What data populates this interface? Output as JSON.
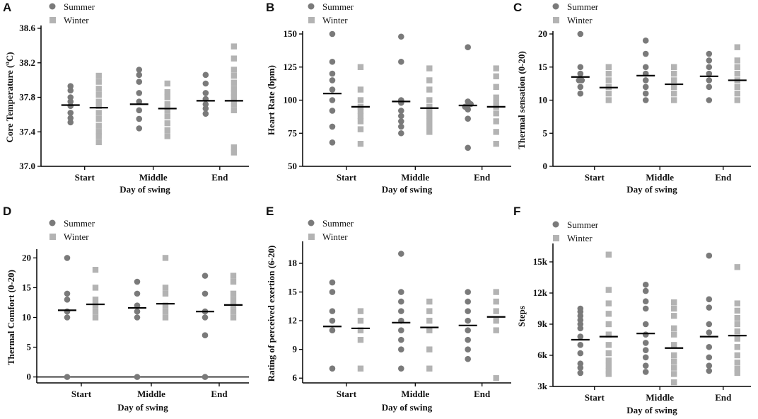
{
  "colors": {
    "summer": "#7a7a7a",
    "winter": "#b3b3b3",
    "axis": "#000000",
    "mean": "#000000"
  },
  "chart_data": [
    {
      "type": "scatter",
      "panel": "A",
      "ylabel": "Core Temperature (°C)",
      "ylabel_prefix": "Core Temperature (",
      "ylabel_sup": "o",
      "ylabel_suffix": "C)",
      "xlabel": "Day of swing",
      "categories": [
        "Start",
        "Middle",
        "End"
      ],
      "legend": [
        "Summer",
        "Winter"
      ],
      "ylim": [
        37.0,
        38.6
      ],
      "yticks": [
        37.0,
        37.4,
        37.8,
        38.2,
        38.6
      ],
      "ytick_labels": [
        "37.0",
        "37.4",
        "37.8",
        "38.2",
        "38.6"
      ],
      "series": [
        {
          "name": "Summer",
          "marker": "circle",
          "means": [
            37.71,
            37.72,
            37.76
          ],
          "points": [
            [
              37.93,
              37.88,
              37.8,
              37.75,
              37.7,
              37.62,
              37.56,
              37.51
            ],
            [
              38.12,
              38.06,
              37.98,
              37.85,
              37.75,
              37.65,
              37.55,
              37.44
            ],
            [
              38.06,
              37.96,
              37.85,
              37.78,
              37.72,
              37.67,
              37.61
            ]
          ]
        },
        {
          "name": "Winter",
          "marker": "square",
          "means": [
            37.68,
            37.67,
            37.76
          ],
          "points": [
            [
              38.05,
              37.98,
              37.9,
              37.83,
              37.75,
              37.7,
              37.62,
              37.55,
              37.47,
              37.4,
              37.35,
              37.28
            ],
            [
              37.96,
              37.86,
              37.8,
              37.72,
              37.65,
              37.58,
              37.5,
              37.42,
              37.35
            ],
            [
              38.39,
              38.25,
              38.12,
              38.05,
              37.97,
              37.9,
              37.85,
              37.8,
              37.72,
              37.65,
              37.22,
              37.16
            ]
          ]
        }
      ]
    },
    {
      "type": "scatter",
      "panel": "B",
      "ylabel": "Heart Rate (bpm)",
      "xlabel": "Day of swing",
      "categories": [
        "Start",
        "Middle",
        "End"
      ],
      "legend": [
        "Summer",
        "Winter"
      ],
      "ylim": [
        50,
        150
      ],
      "yticks": [
        50,
        75,
        100,
        125,
        150
      ],
      "ytick_labels": [
        "50",
        "75",
        "100",
        "125",
        "150"
      ],
      "series": [
        {
          "name": "Summer",
          "marker": "circle",
          "means": [
            105,
            99,
            96
          ],
          "points": [
            [
              150,
              129,
              120,
              115,
              108,
              100,
              92,
              80,
              68
            ],
            [
              148,
              129,
              100,
              98,
              92,
              88,
              84,
              80,
              75
            ],
            [
              140,
              99,
              97,
              96,
              95,
              93,
              86,
              64
            ]
          ]
        },
        {
          "name": "Winter",
          "marker": "square",
          "means": [
            95,
            94,
            95
          ],
          "points": [
            [
              125,
              108,
              100,
              95,
              92,
              88,
              84,
              78,
              67
            ],
            [
              124,
              115,
              108,
              100,
              95,
              92,
              88,
              84,
              80,
              76
            ],
            [
              124,
              118,
              110,
              102,
              98,
              95,
              90,
              84,
              76,
              67
            ]
          ]
        }
      ]
    },
    {
      "type": "scatter",
      "panel": "C",
      "ylabel": "Thermal sensation (0-20)",
      "xlabel": "Day of swing",
      "categories": [
        "Start",
        "Middle",
        "End"
      ],
      "legend": [
        "Summer",
        "Winter"
      ],
      "ylim": [
        0,
        20
      ],
      "yticks": [
        0,
        5,
        10,
        15,
        20
      ],
      "ytick_labels": [
        "0",
        "5",
        "10",
        "15",
        "20"
      ],
      "series": [
        {
          "name": "Summer",
          "marker": "circle",
          "means": [
            13.5,
            13.7,
            13.6
          ],
          "points": [
            [
              20,
              15,
              14,
              13,
              13,
              12,
              11
            ],
            [
              19,
              17,
              15,
              14,
              13,
              12,
              11,
              10
            ],
            [
              17,
              16,
              15,
              14,
              13,
              12,
              10
            ]
          ]
        },
        {
          "name": "Winter",
          "marker": "square",
          "means": [
            11.9,
            12.4,
            13.0
          ],
          "points": [
            [
              15,
              14,
              13,
              12,
              11,
              10
            ],
            [
              15,
              14,
              13,
              12,
              11,
              10
            ],
            [
              18,
              16,
              15,
              14,
              13,
              12,
              11,
              10
            ]
          ]
        }
      ]
    },
    {
      "type": "scatter",
      "panel": "D",
      "ylabel": "Thermal Comfort (0-20)",
      "xlabel": "Day of swing",
      "categories": [
        "Start",
        "Middle",
        "End"
      ],
      "legend": [
        "Summer",
        "Winter"
      ],
      "ylim": [
        -1,
        21
      ],
      "yticks": [
        0,
        5,
        10,
        15,
        20
      ],
      "ytick_labels": [
        "0",
        "5",
        "10",
        "15",
        "20"
      ],
      "hline": 0,
      "series": [
        {
          "name": "Summer",
          "marker": "circle",
          "means": [
            11.2,
            11.6,
            11.0
          ],
          "points": [
            [
              20,
              14,
              13,
              11,
              10,
              0
            ],
            [
              16,
              14,
              12,
              11,
              10,
              0
            ],
            [
              17,
              14,
              11,
              10,
              7,
              0
            ]
          ]
        },
        {
          "name": "Winter",
          "marker": "square",
          "means": [
            12.2,
            12.3,
            12.1
          ],
          "points": [
            [
              18,
              15,
              13,
              12,
              11,
              10
            ],
            [
              20,
              15,
              14,
              12,
              11,
              10
            ],
            [
              17,
              16,
              14,
              13,
              12,
              11,
              10
            ]
          ]
        }
      ]
    },
    {
      "type": "scatter",
      "panel": "E",
      "ylabel": "Rating of perceived exertion (6-20)",
      "xlabel": "Day of swing",
      "categories": [
        "Start",
        "Middle",
        "End"
      ],
      "legend": [
        "Summer",
        "Winter"
      ],
      "ylim": [
        5.5,
        20
      ],
      "yticks": [
        6,
        9,
        12,
        15,
        18
      ],
      "ytick_labels": [
        "6",
        "9",
        "12",
        "15",
        "18"
      ],
      "series": [
        {
          "name": "Summer",
          "marker": "circle",
          "means": [
            11.4,
            11.8,
            11.5
          ],
          "points": [
            [
              16,
              15,
              13,
              12,
              11,
              7
            ],
            [
              19,
              15,
              14,
              13,
              12,
              11,
              10,
              9,
              7
            ],
            [
              15,
              14,
              13,
              12,
              11,
              10,
              9,
              8
            ]
          ]
        },
        {
          "name": "Winter",
          "marker": "square",
          "means": [
            11.2,
            11.3,
            12.4
          ],
          "points": [
            [
              13,
              12,
              11,
              10,
              7
            ],
            [
              14,
              13,
              12,
              11,
              9,
              7
            ],
            [
              15,
              14,
              13,
              12,
              11,
              6
            ]
          ]
        }
      ]
    },
    {
      "type": "scatter",
      "panel": "F",
      "ylabel": "Steps",
      "xlabel": "Day of swing",
      "categories": [
        "Start",
        "Middle",
        "End"
      ],
      "legend": [
        "Summer",
        "Winter"
      ],
      "ylim": [
        3000,
        16500
      ],
      "yticks": [
        3000,
        6000,
        9000,
        12000,
        15000
      ],
      "ytick_labels": [
        "3k",
        "6k",
        "9k",
        "12k",
        "15k"
      ],
      "series": [
        {
          "name": "Summer",
          "marker": "circle",
          "means": [
            7500,
            8100,
            7800
          ],
          "points": [
            [
              10500,
              10200,
              9800,
              9400,
              9000,
              8600,
              7800,
              7000,
              6200,
              5200,
              4800,
              4300
            ],
            [
              12800,
              12200,
              11200,
              10500,
              9000,
              8000,
              7200,
              6500,
              5800,
              5000,
              4400
            ],
            [
              15600,
              11400,
              10600,
              9000,
              8200,
              6800,
              5800,
              5000,
              4500
            ]
          ]
        },
        {
          "name": "Winter",
          "marker": "square",
          "means": [
            7800,
            6700,
            7900
          ],
          "points": [
            [
              15700,
              12300,
              11000,
              10000,
              9000,
              8000,
              7000,
              6200,
              5500,
              5000,
              4500,
              4200
            ],
            [
              11100,
              10500,
              9800,
              8600,
              8000,
              7000,
              6000,
              5400,
              4800,
              4200,
              3400
            ],
            [
              14500,
              11000,
              10300,
              9600,
              9000,
              8300,
              7600,
              6800,
              6000,
              5300,
              4700,
              4300
            ]
          ]
        }
      ]
    }
  ]
}
